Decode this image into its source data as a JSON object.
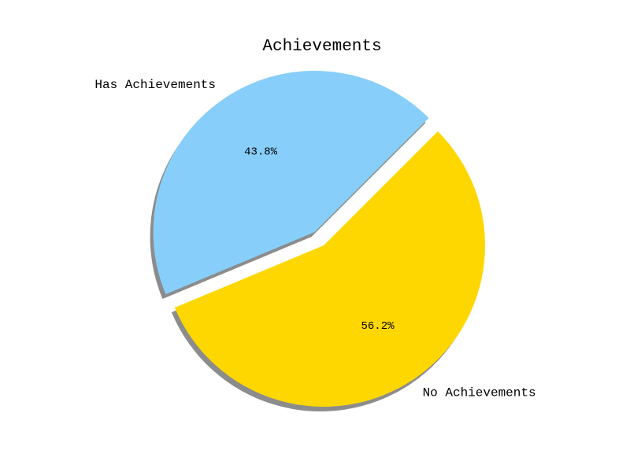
{
  "chart_data": {
    "type": "pie",
    "title": "Achievements",
    "categories": [
      "Has Achievements",
      "No Achievements"
    ],
    "values": [
      43.8,
      56.2
    ],
    "value_labels": [
      "43.8%",
      "56.2%"
    ],
    "colors": [
      "#87CEFA",
      "#FFD700"
    ],
    "exploded": [
      "Has Achievements"
    ],
    "shadow": true
  }
}
